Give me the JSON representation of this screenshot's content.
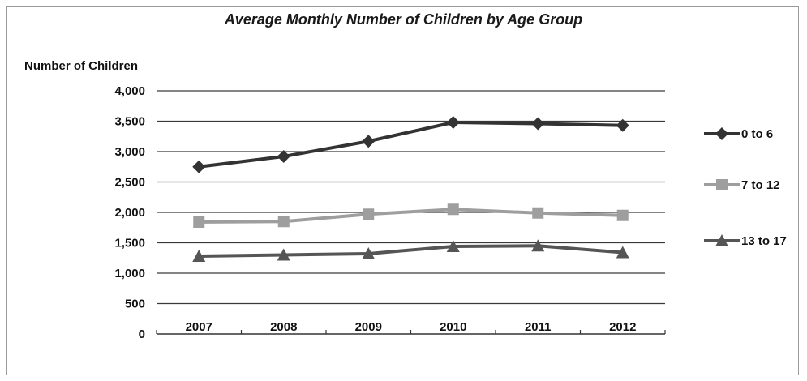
{
  "chart_data": {
    "type": "line",
    "title": "Average Monthly Number of Children by Age Group",
    "ylabel": "Number of Children",
    "xlabel": "",
    "categories": [
      "2007",
      "2008",
      "2009",
      "2010",
      "2011",
      "2012"
    ],
    "yticks": [
      "0",
      "500",
      "1,000",
      "1,500",
      "2,000",
      "2,500",
      "3,000",
      "3,500",
      "4,000"
    ],
    "ylim": [
      0,
      4000
    ],
    "grid": true,
    "legend_position": "right",
    "series": [
      {
        "name": "0 to 6",
        "values": [
          2750,
          2920,
          3170,
          3480,
          3460,
          3430
        ],
        "color": "#333333",
        "marker": "diamond"
      },
      {
        "name": "7 to 12",
        "values": [
          1840,
          1850,
          1970,
          2050,
          1990,
          1950
        ],
        "color": "#9e9e9e",
        "marker": "square"
      },
      {
        "name": "13 to 17",
        "values": [
          1280,
          1300,
          1320,
          1440,
          1450,
          1340
        ],
        "color": "#555555",
        "marker": "triangle"
      }
    ]
  }
}
